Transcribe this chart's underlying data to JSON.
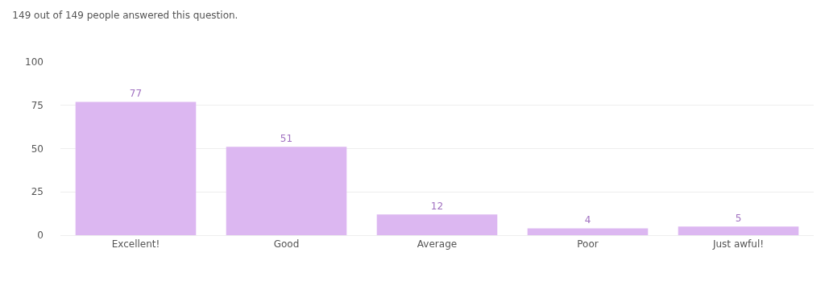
{
  "chart_data": {
    "type": "bar",
    "title": "149 out of 149 people answered this question.",
    "categories": [
      "Excellent!",
      "Good",
      "Average",
      "Poor",
      "Just awful!"
    ],
    "values": [
      77,
      51,
      12,
      4,
      5
    ],
    "color": "#dcb7f1",
    "ylim": [
      0,
      100
    ],
    "yticks": [
      0,
      25,
      50,
      75,
      100
    ],
    "grid": "y",
    "data_labels": true
  }
}
